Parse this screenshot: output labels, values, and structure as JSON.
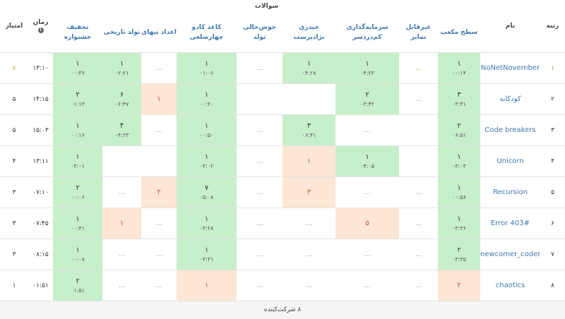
{
  "table": {
    "headers": {
      "rank": "رتبه",
      "name": "نام",
      "problems_title": "سوالات",
      "time": "زمان",
      "score": "امتیاز",
      "problems": [
        "سطح مکعب",
        "غیرقابل تمایز",
        "سرمایه‌گذاری کم‌دردسر",
        "حیدری نژادپرست",
        "خوش‌حالی تولد",
        "کاغذ کادو چهارضلعی",
        "اعداد تیهای",
        "تولد تاریخی",
        "تخفیف جشنواره"
      ]
    },
    "rows": [
      {
        "rank": "۱",
        "name": "NoNetNovember",
        "time": "۱۳:۱۰",
        "score": "۶",
        "cells": [
          {
            "n": "۱",
            "t": "۰۰:۱۴",
            "status": "solved"
          },
          {
            "n": "...",
            "status": "none"
          },
          {
            "n": "۱",
            "t": "۰۴:۲۳",
            "status": "solved"
          },
          {
            "n": "۱",
            "t": "۰۴:۲۸",
            "status": "solved"
          },
          {
            "n": "...",
            "status": "none"
          },
          {
            "n": "۱",
            "t": "۰۱:۰۶",
            "status": "solved"
          },
          {
            "n": "...",
            "status": "none"
          },
          {
            "n": "۱",
            "t": "۰۲:۲۱",
            "status": "solved"
          },
          {
            "n": "۱",
            "t": "۰۰:۳۶",
            "status": "solved"
          }
        ]
      },
      {
        "rank": "۲",
        "name": "کودکانه",
        "time": "۱۴:۱۵",
        "score": "۵",
        "cells": [
          {
            "n": "۳",
            "t": "۰۳:۳۱",
            "status": "solved"
          },
          {
            "n": "...",
            "status": "none"
          },
          {
            "n": "۲",
            "t": "۰۳:۴۲",
            "status": "solved"
          },
          null,
          null,
          {
            "n": "۱",
            "t": "۰۰:۲۰",
            "status": "solved"
          },
          {
            "n": "۱",
            "status": "tried"
          },
          {
            "n": "۶",
            "t": "۰۶:۴۷",
            "status": "solved"
          },
          {
            "n": "۲",
            "t": "۰۱:۱۳",
            "status": "solved"
          }
        ]
      },
      {
        "rank": "۳",
        "name": "Code breakers",
        "time": "۱۵:۰۳",
        "score": "۵",
        "cells": [
          {
            "n": "۲",
            "t": "۰۶:۵۱",
            "status": "solved"
          },
          null,
          {
            "n": "...",
            "status": "none"
          },
          {
            "n": "۳",
            "t": "۰۶:۴۱",
            "status": "solved"
          },
          {
            "n": "...",
            "status": "none"
          },
          {
            "n": "۱",
            "t": "۰۰:۵۰",
            "status": "solved"
          },
          {
            "n": "...",
            "status": "none"
          },
          {
            "n": "۴",
            "t": "۰۴:۲۳",
            "status": "solved"
          },
          {
            "n": "۱",
            "t": "۰۰:۱۶",
            "status": "solved"
          }
        ]
      },
      {
        "rank": "۴",
        "name": "Unicorn",
        "time": "۱۳:۱۱",
        "score": "۴",
        "cells": [
          {
            "n": "۱",
            "t": "۰۳:۰۳",
            "status": "solved"
          },
          null,
          {
            "n": "۱",
            "t": "۰۴:۰۵",
            "status": "solved"
          },
          {
            "n": "۱",
            "status": "tried"
          },
          {
            "n": "...",
            "status": "none"
          },
          {
            "n": "۱",
            "t": "۰۳:۰۲",
            "status": "solved"
          },
          null,
          null,
          {
            "n": "۱",
            "t": "۰۳:۰۱",
            "status": "solved"
          }
        ]
      },
      {
        "rank": "۵",
        "name": "Recursion",
        "time": "۰۷:۱۰",
        "score": "۳",
        "cells": [
          {
            "n": "۱",
            "t": "۰۰:۵۶",
            "status": "solved"
          },
          {
            "n": "...",
            "status": "none"
          },
          {
            "n": "...",
            "status": "none"
          },
          {
            "n": "۳",
            "status": "tried"
          },
          {
            "n": "...",
            "status": "none"
          },
          {
            "n": "۷",
            "t": "۰۵:۰۸",
            "status": "solved"
          },
          {
            "n": "۲",
            "status": "tried"
          },
          {
            "n": "...",
            "status": "none"
          },
          {
            "n": "۲",
            "t": "۰۰:۰۶",
            "status": "solved"
          }
        ]
      },
      {
        "rank": "۶",
        "name": "Error 403#",
        "time": "۰۷:۴۵",
        "score": "۳",
        "cells": [
          {
            "n": "۱",
            "t": "۰۳:۳۶",
            "status": "solved"
          },
          {
            "n": "...",
            "status": "none"
          },
          {
            "n": "۵",
            "status": "tried"
          },
          {
            "n": "...",
            "status": "none"
          },
          {
            "n": "...",
            "status": "none"
          },
          {
            "n": "۱",
            "t": "۰۳:۲۸",
            "status": "solved"
          },
          {
            "n": "...",
            "status": "none"
          },
          {
            "n": "۱",
            "status": "tried"
          },
          {
            "n": "۱",
            "t": "۰۰:۴۱",
            "status": "solved"
          }
        ]
      },
      {
        "rank": "۷",
        "name": "newcomer_coders",
        "time": "۰۸:۱۵",
        "score": "۳",
        "cells": [
          {
            "n": "۲",
            "t": "۰۳:۳۵",
            "status": "solved"
          },
          {
            "n": "...",
            "status": "none"
          },
          {
            "n": "...",
            "status": "none"
          },
          {
            "n": "...",
            "status": "none"
          },
          {
            "n": "...",
            "status": "none"
          },
          {
            "n": "۱",
            "t": "۰۳:۳۱",
            "status": "solved"
          },
          {
            "n": "...",
            "status": "none"
          },
          {
            "n": "...",
            "status": "none"
          },
          {
            "n": "۱",
            "t": "۰۰:۰۸",
            "status": "solved"
          }
        ]
      },
      {
        "rank": "۸",
        "name": "chaotics",
        "time": "۰۱:۵۱",
        "score": "۱",
        "cells": [
          {
            "n": "۲",
            "status": "tried"
          },
          {
            "n": "...",
            "status": "none"
          },
          {
            "n": "...",
            "status": "none"
          },
          {
            "n": "...",
            "status": "none"
          },
          {
            "n": "...",
            "status": "none"
          },
          {
            "n": "۱",
            "status": "tried"
          },
          {
            "n": "...",
            "status": "none"
          },
          {
            "n": "...",
            "status": "none"
          },
          {
            "n": "۲",
            "t": "۰۱:۵۱",
            "status": "solved"
          }
        ]
      }
    ],
    "footer": "۸ شرکت‌کننده"
  }
}
